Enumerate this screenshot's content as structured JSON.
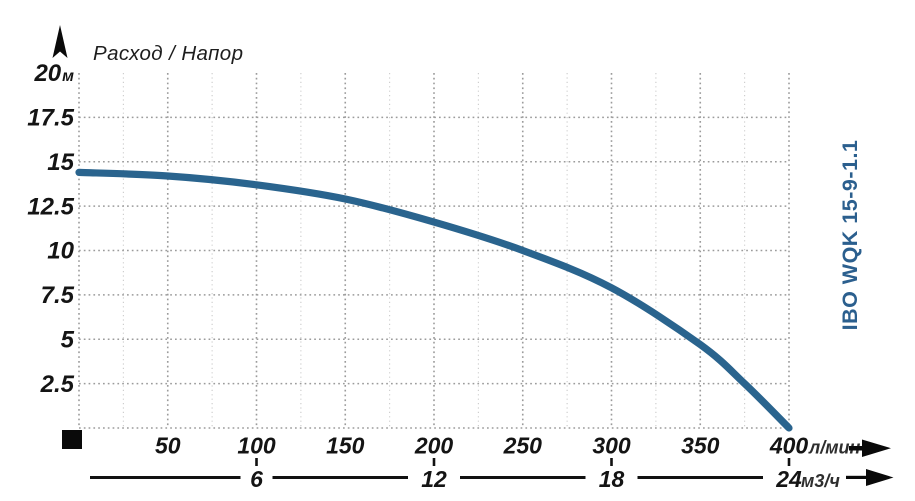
{
  "header": {
    "title": "Расход / Напор"
  },
  "model_label": "IBO WQK 15-9-1.1",
  "icons": {
    "y_axis_arrow": "arrow-up",
    "x_axis_arrow": "arrow-right",
    "x2_axis_arrow": "arrow-right",
    "origin_marker": "filled-square"
  },
  "colors": {
    "curve": "#2A648E",
    "model": "#2B5F8E",
    "grid_major": "#9b9b9b",
    "grid_minor": "#cbcbcb",
    "text": "#141414",
    "axis": "#111111"
  },
  "chart_data": {
    "type": "line",
    "title": "Расход / Напор",
    "series_name": "IBO WQK 15-9-1.1 head curve",
    "x": [
      0,
      50,
      100,
      150,
      200,
      250,
      300,
      350,
      375,
      400
    ],
    "y": [
      14.4,
      14.2,
      13.7,
      12.9,
      11.6,
      10.0,
      7.9,
      4.7,
      2.5,
      0
    ],
    "xlabel": "Расход (л/мин / м3/ч)",
    "ylabel": "Напор (м)",
    "x_unit_primary": "л/мин",
    "x_unit_secondary": "м3/ч",
    "y_unit": "м",
    "xlim": [
      0,
      400
    ],
    "ylim": [
      0,
      20
    ],
    "x_ticks_primary": [
      50,
      100,
      150,
      200,
      250,
      300,
      350,
      400
    ],
    "x_ticks_secondary": [
      6,
      12,
      18,
      24
    ],
    "x_secondary_lmin_per_unit": 16.6667,
    "y_ticks": [
      2.5,
      5,
      7.5,
      10,
      12.5,
      15,
      17.5,
      20
    ],
    "y_tick_with_unit": 20,
    "grid": "dotted",
    "legend_position": "none"
  }
}
